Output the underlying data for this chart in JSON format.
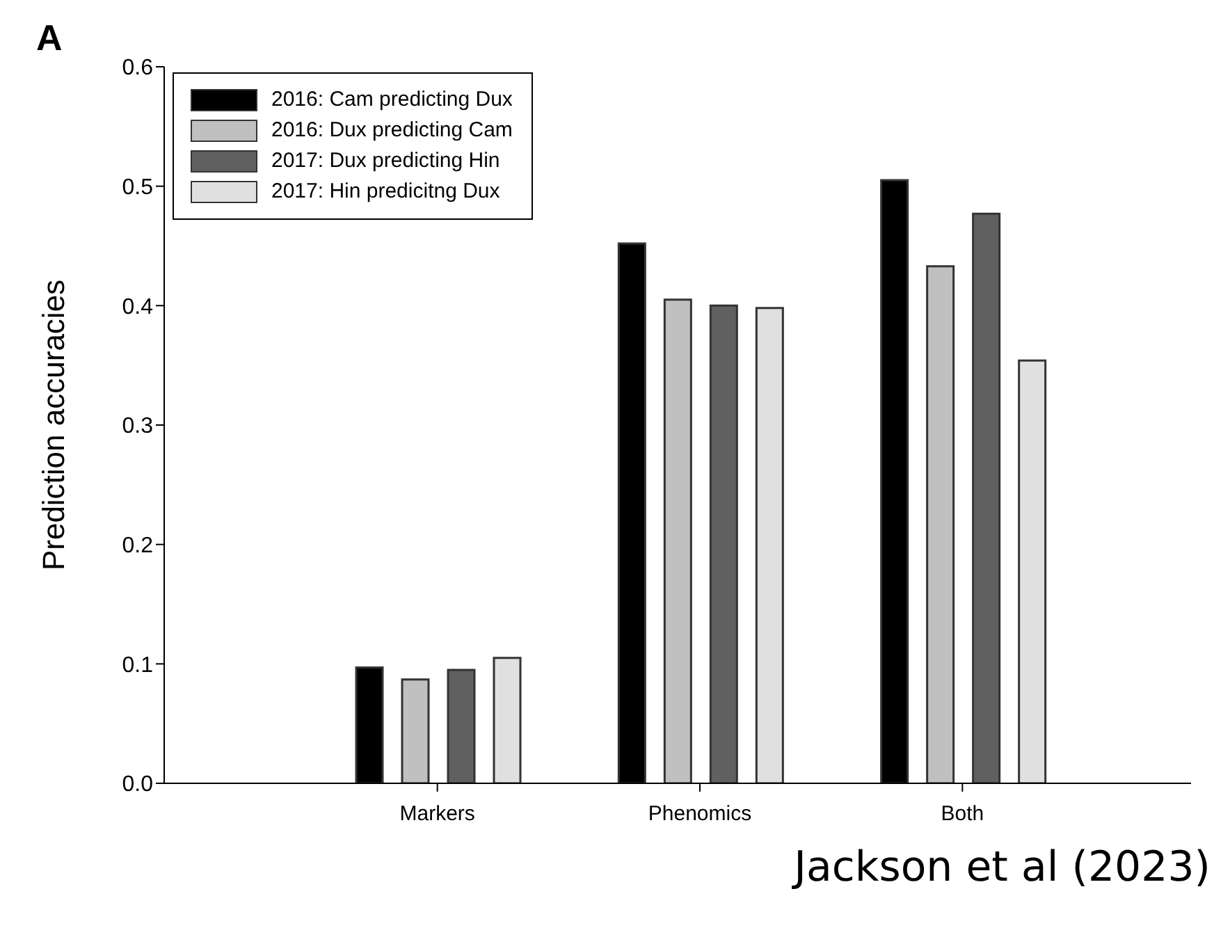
{
  "chart_data": {
    "type": "bar",
    "ylabel": "Prediction accuracies",
    "categories": [
      "Markers",
      "Phenomics",
      "Both"
    ],
    "series": [
      {
        "name": "2016: Cam predicting Dux",
        "color": "#000000",
        "values": [
          0.097,
          0.452,
          0.505
        ]
      },
      {
        "name": "2016: Dux predicting Cam",
        "color": "#c0c0c0",
        "values": [
          0.087,
          0.405,
          0.433
        ]
      },
      {
        "name": "2017: Dux predicting Hin",
        "color": "#606060",
        "values": [
          0.095,
          0.4,
          0.477
        ]
      },
      {
        "name": "2017: Hin predicitng Dux",
        "color": "#e0e0e0",
        "values": [
          0.105,
          0.398,
          0.354
        ]
      }
    ],
    "ylim": [
      0,
      0.6
    ],
    "yticks": [
      {
        "value": 0,
        "label": "0.0"
      },
      0.1,
      0.2,
      0.3,
      0.4,
      0.5,
      0.6
    ],
    "legend": "top left",
    "grid": false,
    "annotations": [
      "A",
      "Jackson et al (2023)"
    ]
  }
}
